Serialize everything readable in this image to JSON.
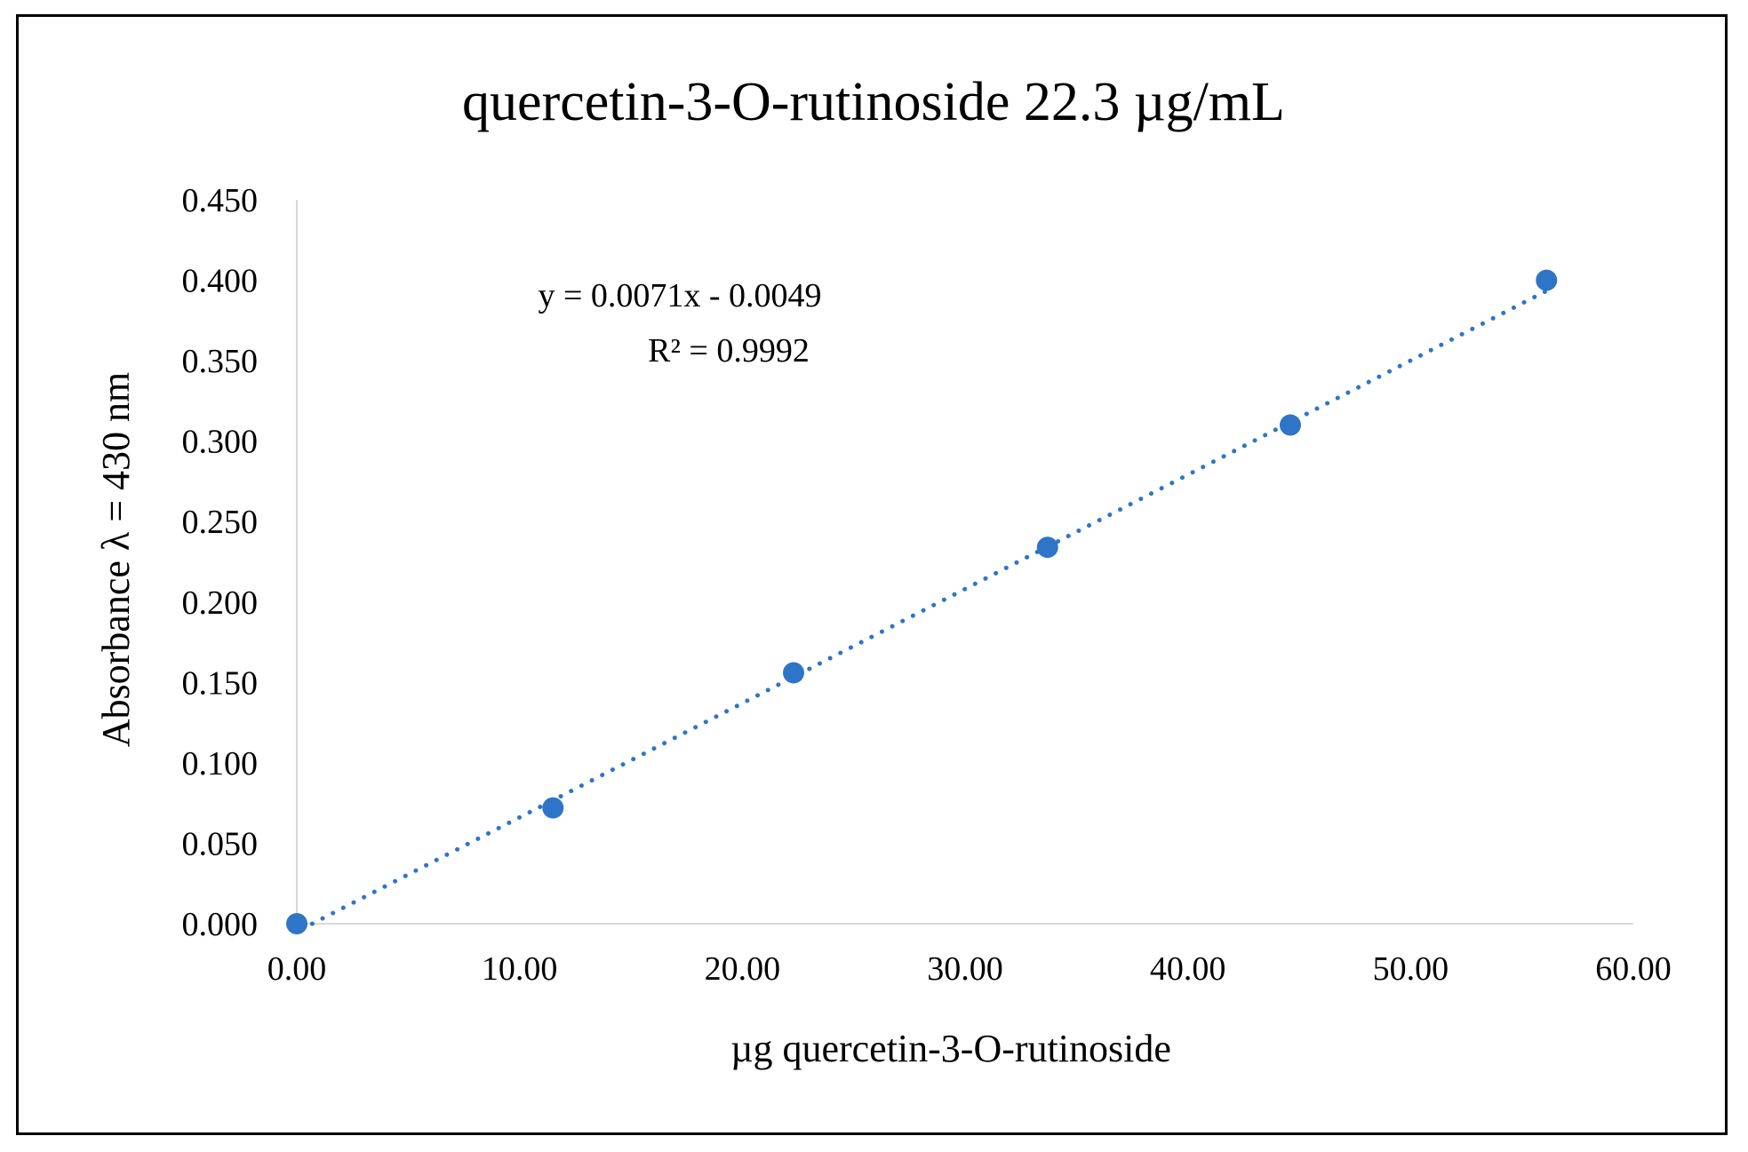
{
  "chart_data": {
    "type": "scatter",
    "title": "quercetin-3-O-rutinoside 22.3 µg/mL",
    "xlabel": "µg quercetin-3-O-rutinoside",
    "ylabel": "Absorbance λ = 430 nm",
    "xlim": [
      0,
      60
    ],
    "ylim": [
      0,
      0.45
    ],
    "x_ticks": [
      "0.00",
      "10.00",
      "20.00",
      "30.00",
      "40.00",
      "50.00",
      "60.00"
    ],
    "y_ticks": [
      "0.000",
      "0.050",
      "0.100",
      "0.150",
      "0.200",
      "0.250",
      "0.300",
      "0.350",
      "0.400",
      "0.450"
    ],
    "grid": false,
    "series": [
      {
        "points": [
          {
            "x": 0.0,
            "y": 0.0
          },
          {
            "x": 11.5,
            "y": 0.072
          },
          {
            "x": 22.3,
            "y": 0.156
          },
          {
            "x": 33.7,
            "y": 0.234
          },
          {
            "x": 44.6,
            "y": 0.31
          },
          {
            "x": 56.1,
            "y": 0.4
          }
        ]
      }
    ],
    "trendline": {
      "type": "linear",
      "style": "dotted",
      "slope": 0.0071,
      "intercept": -0.0049,
      "equation": "y = 0.0071x  - 0.0049",
      "r_squared": "R² = 0.9992"
    },
    "colors": {
      "marker": "#2e75c7",
      "axis": "#d9d9d9",
      "text": "#000000"
    }
  }
}
